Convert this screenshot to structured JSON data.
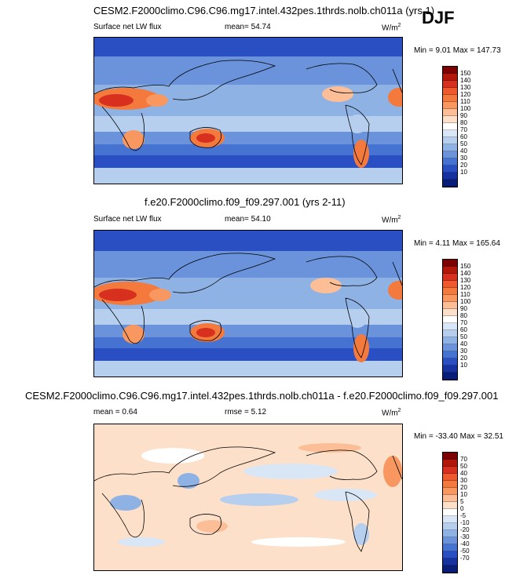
{
  "season": "DJF",
  "panels": [
    {
      "title": "CESM2.F2000climo.C96.C96.mg17.intel.432pes.1thrds.nolb.ch011a (yrs 1)",
      "left_label": "Surface net LW flux",
      "mid_label": "mean=  54.74",
      "units": "W/m",
      "units_sup": "2",
      "minmax": "Min =   9.01 Max = 147.73",
      "colorbar": {
        "labels": [
          "150",
          "140",
          "130",
          "120",
          "110",
          "100",
          "90",
          "80",
          "70",
          "60",
          "50",
          "40",
          "30",
          "20",
          "10"
        ],
        "colors": [
          "#7f0000",
          "#b2180a",
          "#d7301f",
          "#ee5a2d",
          "#f4793d",
          "#f89860",
          "#fbbe97",
          "#fde0ca",
          "#ffffff",
          "#d8e6f6",
          "#b6cfee",
          "#8fb2e4",
          "#6a93dc",
          "#4672d2",
          "#2a4fc2",
          "#17329f",
          "#081d78"
        ]
      }
    },
    {
      "title": "f.e20.F2000climo.f09_f09.297.001 (yrs 2-11)",
      "left_label": "Surface net LW flux",
      "mid_label": "mean=  54.10",
      "units": "W/m",
      "units_sup": "2",
      "minmax": "Min =   4.11 Max = 165.64",
      "colorbar": {
        "labels": [
          "150",
          "140",
          "130",
          "120",
          "110",
          "100",
          "90",
          "80",
          "70",
          "60",
          "50",
          "40",
          "30",
          "20",
          "10"
        ],
        "colors": [
          "#7f0000",
          "#b2180a",
          "#d7301f",
          "#ee5a2d",
          "#f4793d",
          "#f89860",
          "#fbbe97",
          "#fde0ca",
          "#ffffff",
          "#d8e6f6",
          "#b6cfee",
          "#8fb2e4",
          "#6a93dc",
          "#4672d2",
          "#2a4fc2",
          "#17329f",
          "#081d78"
        ]
      }
    },
    {
      "title": "CESM2.F2000climo.C96.C96.mg17.intel.432pes.1thrds.nolb.ch011a - f.e20.F2000climo.f09_f09.297.001",
      "left_label": "mean =   0.64",
      "mid_label": "rmse =   5.12",
      "units": "W/m",
      "units_sup": "2",
      "minmax": "Min = -33.40 Max =  32.51",
      "colorbar": {
        "labels": [
          "70",
          "50",
          "40",
          "30",
          "20",
          "10",
          "5",
          "0",
          "-5",
          "-10",
          "-20",
          "-30",
          "-40",
          "-50",
          "-70"
        ],
        "colors": [
          "#7f0000",
          "#b2180a",
          "#d7301f",
          "#ee5a2d",
          "#f4793d",
          "#f89860",
          "#fbbe97",
          "#fde0ca",
          "#ffffff",
          "#d8e6f6",
          "#b6cfee",
          "#8fb2e4",
          "#6a93dc",
          "#4672d2",
          "#2a4fc2",
          "#17329f",
          "#081d78"
        ]
      }
    }
  ]
}
